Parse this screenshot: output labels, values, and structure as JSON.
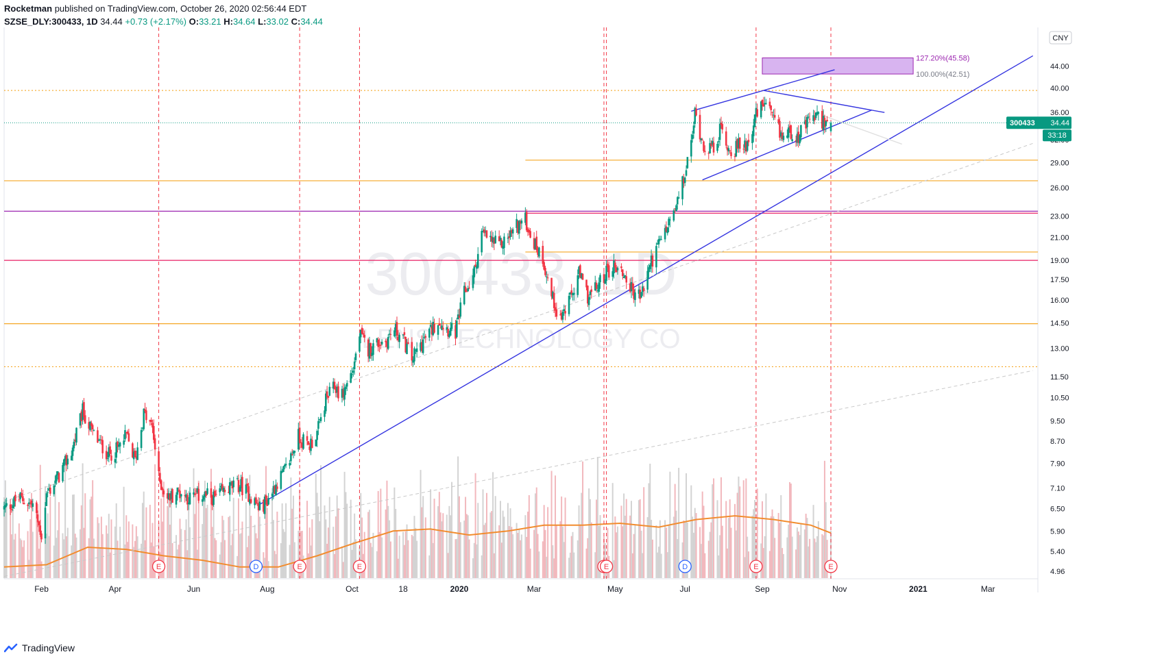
{
  "header": {
    "author": "Rocketman",
    "published": "published on TradingView.com, October 26, 2020 02:56:44 EDT",
    "symbol": "SZSE_DLY:300433, 1D",
    "last": "34.44",
    "change": "+0.73 (+2.17%)",
    "o_label": "O:",
    "o": "33.21",
    "h_label": "H:",
    "h": "34.64",
    "l_label": "L:",
    "l": "33.02",
    "c_label": "C:",
    "c": "34.44"
  },
  "footer": {
    "brand": "TradingView"
  },
  "colors": {
    "up": "#089981",
    "down": "#f23645",
    "volume_up": "#d3d3d3",
    "volume_down": "#f2b8bd",
    "ma": "#f28c2e",
    "trend": "#3535e0",
    "fib": "#9c27b0",
    "fib_fill": "#d8b4f0",
    "orange_level": "#f5a623",
    "purple_level": "#9c27b0",
    "magenta_level": "#e91e63",
    "earnings_line": "#f23645"
  },
  "chart_data": {
    "type": "candlestick",
    "symbol": "300433",
    "timeframe": "1D",
    "currency": "CNY",
    "watermark": "300433, 1D",
    "watermark_sub": "LENS TECHNOLOGY CO",
    "price_scale": "log",
    "price_ticks": [
      "44.00",
      "40.00",
      "36.00",
      "32.00",
      "29.00",
      "26.00",
      "23.00",
      "21.00",
      "19.00",
      "17.50",
      "16.00",
      "14.50",
      "13.00",
      "11.50",
      "10.50",
      "9.50",
      "8.70",
      "7.90",
      "7.10",
      "6.50",
      "5.90",
      "5.40",
      "4.96"
    ],
    "time_ticks": [
      {
        "label": "Feb",
        "date": "2019-02-01",
        "bold": false
      },
      {
        "label": "Apr",
        "date": "2019-04-01",
        "bold": false
      },
      {
        "label": "Jun",
        "date": "2019-06-03",
        "bold": false
      },
      {
        "label": "Aug",
        "date": "2019-08-01",
        "bold": false
      },
      {
        "label": "Oct",
        "date": "2019-10-08",
        "bold": false
      },
      {
        "label": "18",
        "date": "2019-11-18",
        "bold": false
      },
      {
        "label": "2020",
        "date": "2020-01-02",
        "bold": true
      },
      {
        "label": "Mar",
        "date": "2020-03-02",
        "bold": false
      },
      {
        "label": "May",
        "date": "2020-05-06",
        "bold": false
      },
      {
        "label": "Jul",
        "date": "2020-07-01",
        "bold": false
      },
      {
        "label": "Sep",
        "date": "2020-09-01",
        "bold": false
      },
      {
        "label": "Nov",
        "date": "2020-11-02",
        "bold": false
      },
      {
        "label": "2021",
        "date": "2021-01-04",
        "bold": true
      },
      {
        "label": "Mar",
        "date": "2021-03-01",
        "bold": false
      }
    ],
    "x_range": [
      "2019-01-02",
      "2021-04-10"
    ],
    "y_range": [
      4.8,
      52
    ],
    "price_path": [
      [
        "2019-01-02",
        6.5
      ],
      [
        "2019-01-15",
        6.8
      ],
      [
        "2019-01-25",
        6.6
      ],
      [
        "2019-02-01",
        5.8
      ],
      [
        "2019-02-05",
        6.9
      ],
      [
        "2019-02-15",
        7.5
      ],
      [
        "2019-02-25",
        8.3
      ],
      [
        "2019-03-06",
        9.9
      ],
      [
        "2019-03-13",
        9.1
      ],
      [
        "2019-03-20",
        8.6
      ],
      [
        "2019-03-27",
        8.2
      ],
      [
        "2019-04-03",
        8.4
      ],
      [
        "2019-04-10",
        8.9
      ],
      [
        "2019-04-17",
        8.0
      ],
      [
        "2019-04-24",
        9.8
      ],
      [
        "2019-05-01",
        9.2
      ],
      [
        "2019-05-06",
        7.4
      ],
      [
        "2019-05-13",
        6.8
      ],
      [
        "2019-05-22",
        7.0
      ],
      [
        "2019-05-31",
        6.8
      ],
      [
        "2019-06-10",
        6.9
      ],
      [
        "2019-06-20",
        6.8
      ],
      [
        "2019-07-01",
        7.1
      ],
      [
        "2019-07-10",
        7.2
      ],
      [
        "2019-07-18",
        6.9
      ],
      [
        "2019-07-26",
        6.5
      ],
      [
        "2019-08-02",
        6.8
      ],
      [
        "2019-08-09",
        7.3
      ],
      [
        "2019-08-16",
        7.7
      ],
      [
        "2019-08-26",
        8.9
      ],
      [
        "2019-09-03",
        8.5
      ],
      [
        "2019-09-10",
        9.0
      ],
      [
        "2019-09-17",
        10.4
      ],
      [
        "2019-09-24",
        11.0
      ],
      [
        "2019-09-30",
        10.6
      ],
      [
        "2019-10-09",
        11.9
      ],
      [
        "2019-10-14",
        13.8
      ],
      [
        "2019-10-21",
        12.9
      ],
      [
        "2019-10-28",
        13.3
      ],
      [
        "2019-11-04",
        13.4
      ],
      [
        "2019-11-11",
        14.1
      ],
      [
        "2019-11-18",
        13.5
      ],
      [
        "2019-11-25",
        12.4
      ],
      [
        "2019-12-02",
        13.2
      ],
      [
        "2019-12-09",
        13.9
      ],
      [
        "2019-12-16",
        14.7
      ],
      [
        "2019-12-23",
        14.2
      ],
      [
        "2019-12-30",
        13.9
      ],
      [
        "2020-01-06",
        16.5
      ],
      [
        "2020-01-13",
        17.6
      ],
      [
        "2020-01-20",
        21.3
      ],
      [
        "2020-02-03",
        20.2
      ],
      [
        "2020-02-10",
        21.0
      ],
      [
        "2020-02-17",
        22.1
      ],
      [
        "2020-02-24",
        22.6
      ],
      [
        "2020-03-02",
        20.5
      ],
      [
        "2020-03-09",
        19.2
      ],
      [
        "2020-03-16",
        16.3
      ],
      [
        "2020-03-23",
        14.8
      ],
      [
        "2020-03-30",
        15.8
      ],
      [
        "2020-04-07",
        17.9
      ],
      [
        "2020-04-14",
        16.3
      ],
      [
        "2020-04-21",
        16.8
      ],
      [
        "2020-04-28",
        18.0
      ],
      [
        "2020-05-06",
        18.6
      ],
      [
        "2020-05-13",
        17.9
      ],
      [
        "2020-05-20",
        16.6
      ],
      [
        "2020-05-27",
        16.3
      ],
      [
        "2020-06-03",
        18.7
      ],
      [
        "2020-06-10",
        20.3
      ],
      [
        "2020-06-17",
        22.0
      ],
      [
        "2020-06-24",
        23.9
      ],
      [
        "2020-07-01",
        27.5
      ],
      [
        "2020-07-06",
        31.5
      ],
      [
        "2020-07-09",
        35.9
      ],
      [
        "2020-07-16",
        31.3
      ],
      [
        "2020-07-23",
        30.8
      ],
      [
        "2020-07-30",
        33.6
      ],
      [
        "2020-08-06",
        30.4
      ],
      [
        "2020-08-13",
        31.1
      ],
      [
        "2020-08-20",
        31.6
      ],
      [
        "2020-08-27",
        35.5
      ],
      [
        "2020-09-03",
        37.6
      ],
      [
        "2020-09-10",
        34.6
      ],
      [
        "2020-09-17",
        32.4
      ],
      [
        "2020-09-24",
        33.2
      ],
      [
        "2020-09-30",
        32.5
      ],
      [
        "2020-10-12",
        35.5
      ],
      [
        "2020-10-19",
        34.8
      ],
      [
        "2020-10-26",
        34.44
      ]
    ],
    "ma_path": [
      [
        "2019-01-02",
        5.05
      ],
      [
        "2019-02-05",
        5.1
      ],
      [
        "2019-03-10",
        5.5
      ],
      [
        "2019-04-10",
        5.45
      ],
      [
        "2019-05-10",
        5.3
      ],
      [
        "2019-06-10",
        5.2
      ],
      [
        "2019-07-10",
        5.05
      ],
      [
        "2019-08-10",
        5.05
      ],
      [
        "2019-09-10",
        5.3
      ],
      [
        "2019-10-10",
        5.6
      ],
      [
        "2019-11-10",
        5.9
      ],
      [
        "2019-12-10",
        5.95
      ],
      [
        "2020-01-10",
        5.8
      ],
      [
        "2020-02-10",
        5.9
      ],
      [
        "2020-03-10",
        6.05
      ],
      [
        "2020-04-10",
        6.05
      ],
      [
        "2020-05-10",
        6.1
      ],
      [
        "2020-06-10",
        6.0
      ],
      [
        "2020-07-10",
        6.2
      ],
      [
        "2020-08-10",
        6.3
      ],
      [
        "2020-09-10",
        6.2
      ],
      [
        "2020-10-10",
        6.05
      ],
      [
        "2020-10-26",
        5.85
      ]
    ],
    "volume_scale": [
      0,
      1.0
    ],
    "horizontal_levels": [
      {
        "price": 39.6,
        "style": "dotted",
        "color": "#f5a623",
        "from": "2019-01-02"
      },
      {
        "price": 29.3,
        "style": "solid",
        "color": "#f5a623",
        "from": "2020-02-24"
      },
      {
        "price": 26.8,
        "style": "solid",
        "color": "#f5a623",
        "from": "2019-01-02"
      },
      {
        "price": 23.5,
        "style": "solid",
        "color": "#9c27b0",
        "from": "2019-01-02"
      },
      {
        "price": 23.3,
        "style": "solid",
        "color": "#e91e63",
        "from": "2020-02-24"
      },
      {
        "price": 19.7,
        "style": "solid",
        "color": "#f5a623",
        "from": "2020-02-24"
      },
      {
        "price": 19.0,
        "style": "solid",
        "color": "#e91e63",
        "from": "2019-01-02"
      },
      {
        "price": 14.45,
        "style": "solid",
        "color": "#f5a623",
        "from": "2019-01-02"
      },
      {
        "price": 12.0,
        "style": "dotted",
        "color": "#f5a623",
        "from": "2019-01-02"
      }
    ],
    "fib_box": {
      "from": "2020-09-01",
      "to": "2020-12-31",
      "top": 45.58,
      "bottom": 42.51,
      "top_label": "127.20%(45.58)",
      "bottom_label": "100.00%(42.51)"
    },
    "trendlines": [
      {
        "p1": [
          "2019-07-25",
          6.6
        ],
        "p2": [
          "2021-04-06",
          46.0
        ],
        "color": "#3535e0",
        "style": "solid"
      },
      {
        "p1": [
          "2020-07-06",
          36.2
        ],
        "p2": [
          "2020-09-02",
          39.6
        ],
        "color": "#3535e0",
        "style": "solid"
      },
      {
        "p1": [
          "2020-09-02",
          39.6
        ],
        "p2": [
          "2020-12-08",
          36.0
        ],
        "color": "#3535e0",
        "style": "solid"
      },
      {
        "p1": [
          "2020-07-15",
          26.9
        ],
        "p2": [
          "2020-11-28",
          36.4
        ],
        "color": "#3535e0",
        "style": "solid"
      },
      {
        "p1": [
          "2020-09-02",
          39.6
        ],
        "p2": [
          "2020-10-29",
          43.3
        ],
        "color": "#3535e0",
        "style": "solid"
      },
      {
        "p1": [
          "2019-01-02",
          6.7
        ],
        "p2": [
          "2021-04-06",
          31.5
        ],
        "color": "#c8c8c8",
        "style": "dashed"
      },
      {
        "p1": [
          "2019-01-02",
          4.85
        ],
        "p2": [
          "2021-04-06",
          11.8
        ],
        "color": "#c8c8c8",
        "style": "dashed"
      },
      {
        "p1": [
          "2020-10-20",
          35.5
        ],
        "p2": [
          "2020-12-22",
          31.4
        ],
        "color": "#e0e0e0",
        "style": "solid"
      }
    ],
    "event_lines": [
      "2019-05-06",
      "2019-08-27",
      "2019-10-14",
      "2020-04-27",
      "2020-04-29",
      "2020-08-27",
      "2020-10-26"
    ],
    "events": [
      {
        "date": "2019-05-06",
        "letter": "E"
      },
      {
        "date": "2019-07-23",
        "letter": "D"
      },
      {
        "date": "2019-08-27",
        "letter": "E"
      },
      {
        "date": "2019-10-14",
        "letter": "E"
      },
      {
        "date": "2020-04-27",
        "letter": "E"
      },
      {
        "date": "2020-04-29",
        "letter": "E"
      },
      {
        "date": "2020-07-01",
        "letter": "D"
      },
      {
        "date": "2020-08-27",
        "letter": "E"
      },
      {
        "date": "2020-10-26",
        "letter": "E"
      }
    ],
    "last_price_label": {
      "symbol": "300433",
      "price": "34.44",
      "countdown": "33:18"
    }
  }
}
